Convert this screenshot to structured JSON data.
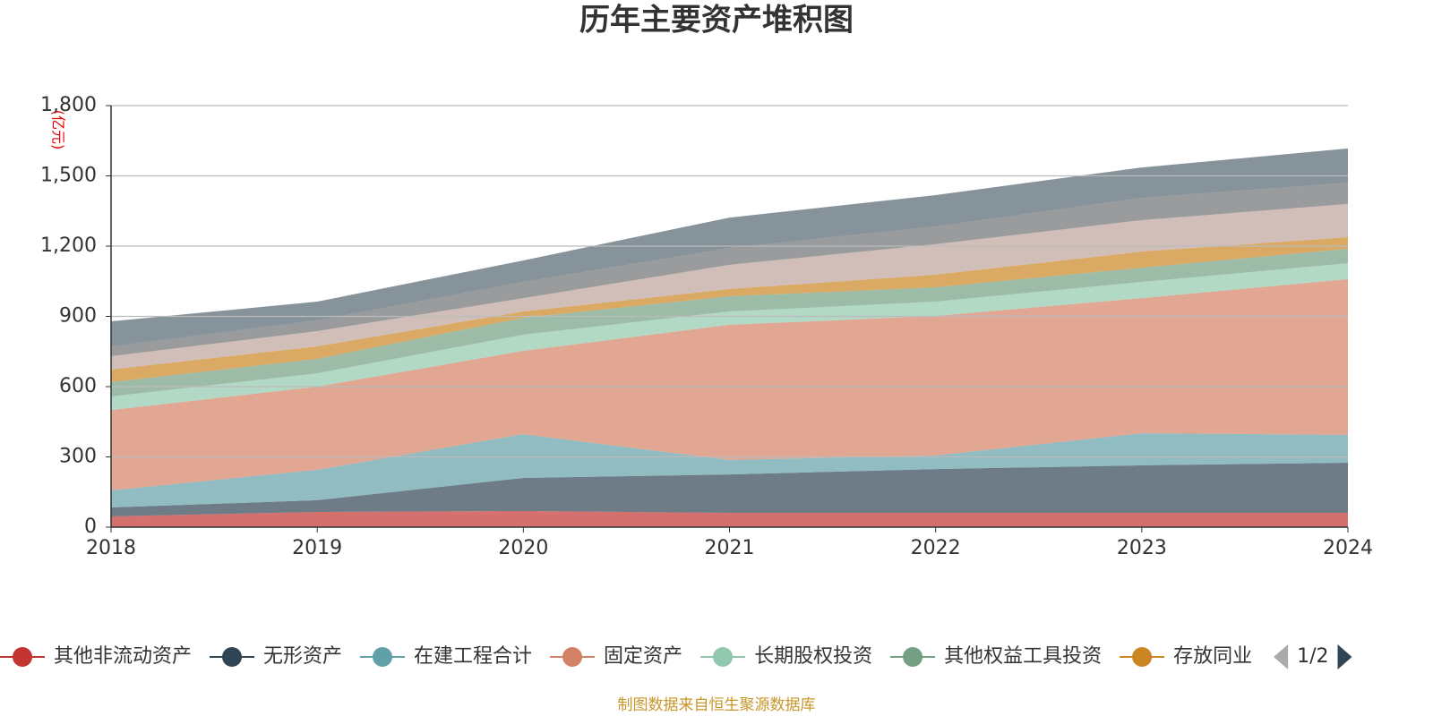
{
  "chart_data": {
    "type": "stacked-area",
    "title": "历年主要资产堆积图",
    "y_unit": "(亿元)",
    "categories": [
      "2018",
      "2019",
      "2020",
      "2021",
      "2022",
      "2023",
      "2024"
    ],
    "series": [
      {
        "name": "其他非流动资产",
        "color": "#c23531",
        "values": [
          46,
          65,
          69,
          61,
          61,
          61,
          61
        ]
      },
      {
        "name": "无形资产",
        "color": "#2f4554",
        "values": [
          38,
          50,
          141,
          164,
          187,
          203,
          214
        ]
      },
      {
        "name": "在建工程合计",
        "color": "#61a0a8",
        "values": [
          73,
          130,
          187,
          62,
          58,
          137,
          119
        ]
      },
      {
        "name": "固定资产",
        "color": "#d48265",
        "values": [
          343,
          355,
          356,
          577,
          596,
          577,
          665
        ]
      },
      {
        "name": "长期股权投资",
        "color": "#91c7ae",
        "values": [
          58,
          57,
          69,
          57,
          61,
          69,
          68
        ]
      },
      {
        "name": "其他权益工具投资",
        "color": "#749f83",
        "values": [
          61,
          62,
          72,
          65,
          61,
          61,
          62
        ]
      },
      {
        "name": "存放同业",
        "color": "#ca8622",
        "values": [
          54,
          53,
          27,
          31,
          54,
          69,
          49
        ]
      },
      {
        "name": null,
        "color": "#bda29a",
        "values": [
          57,
          65,
          57,
          103,
          130,
          134,
          142
        ]
      },
      {
        "name": null,
        "color": "#6e7074",
        "values": [
          42,
          46,
          69,
          72,
          76,
          95,
          91
        ]
      },
      {
        "name": null,
        "color": "#546570",
        "values": [
          107,
          80,
          92,
          130,
          134,
          130,
          146
        ]
      }
    ],
    "ylim": [
      0,
      1800
    ],
    "yticks": [
      0,
      300,
      600,
      900,
      {
        "value": 1200,
        "label": "1,200"
      },
      {
        "value": 1500,
        "label": "1,500"
      },
      {
        "value": 1800,
        "label": "1,800"
      }
    ],
    "grid": true,
    "legend_position": "bottom",
    "legend_page": "1/2",
    "source": "制图数据来自恒生聚源数据库"
  }
}
